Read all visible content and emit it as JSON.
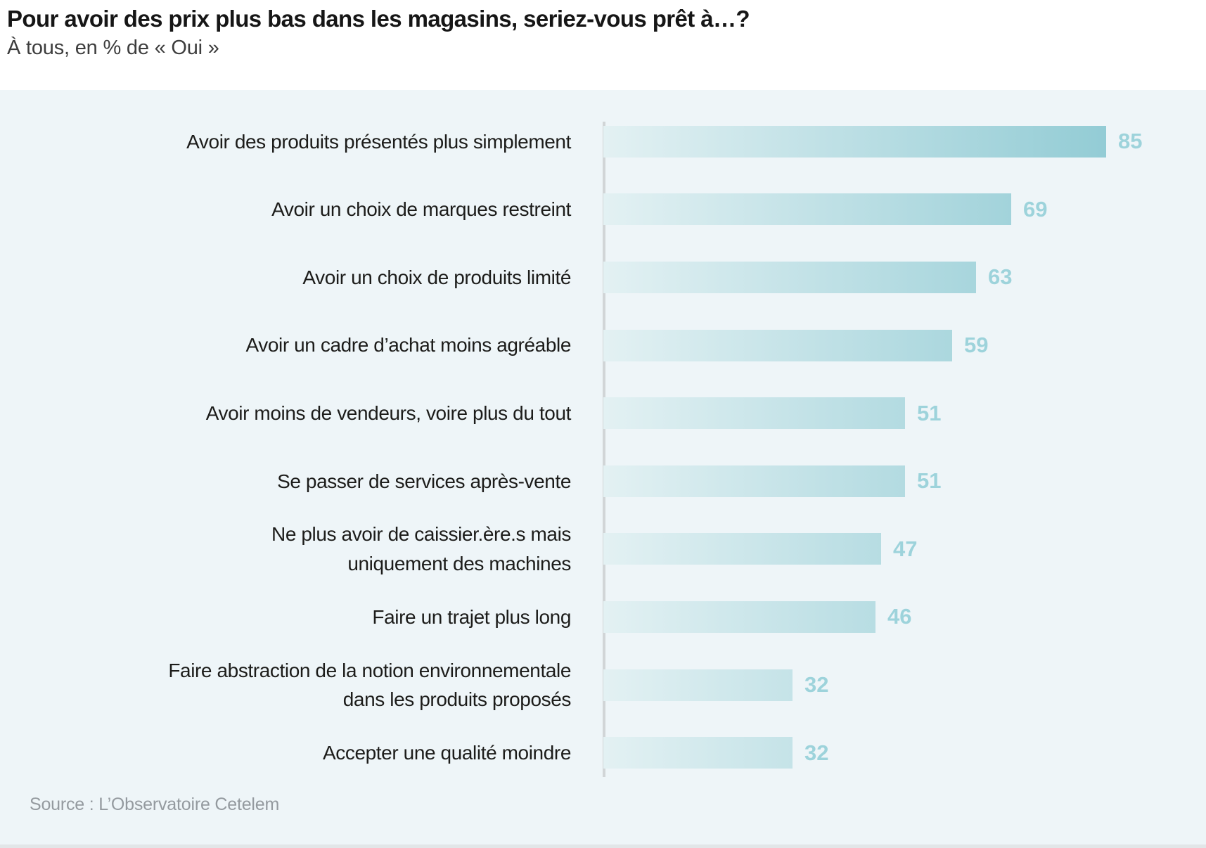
{
  "header": {
    "title": "Pour avoir des prix plus bas dans les magasins, seriez-vous prêt à…?",
    "subtitle": "À tous, en % de « Oui »"
  },
  "chart_data": {
    "type": "bar",
    "orientation": "horizontal",
    "title": "Pour avoir des prix plus bas dans les magasins, seriez-vous prêt à…?",
    "subtitle": "À tous, en % de « Oui »",
    "unit": "% de « Oui »",
    "categories": [
      "Avoir des produits présentés plus simplement",
      "Avoir un choix de marques restreint",
      "Avoir un choix de produits limité",
      "Avoir un cadre d’achat moins agréable",
      "Avoir moins de vendeurs, voire plus du tout",
      "Se passer de services après-vente",
      "Ne plus avoir de caissier.ère.s mais\nuniquement des machines",
      "Faire un trajet plus long",
      "Faire abstraction de la notion environnementale\ndans les produits proposés",
      "Accepter une qualité moindre"
    ],
    "values": [
      85,
      69,
      63,
      59,
      51,
      51,
      47,
      46,
      32,
      32
    ],
    "xlim": [
      0,
      85
    ],
    "grid": false,
    "legend": false,
    "value_labels": "end-of-bar",
    "colors": {
      "bar_gradient_start": "#e3f1f3",
      "bar_gradient_end": "#93ccd5",
      "value_label": "#9dd3db",
      "panel_background": "#eef5f8",
      "axis_line": "#d1d5d7",
      "label_text": "#1c1c1a"
    }
  },
  "source": "Source : L’Observatoire Cetelem"
}
